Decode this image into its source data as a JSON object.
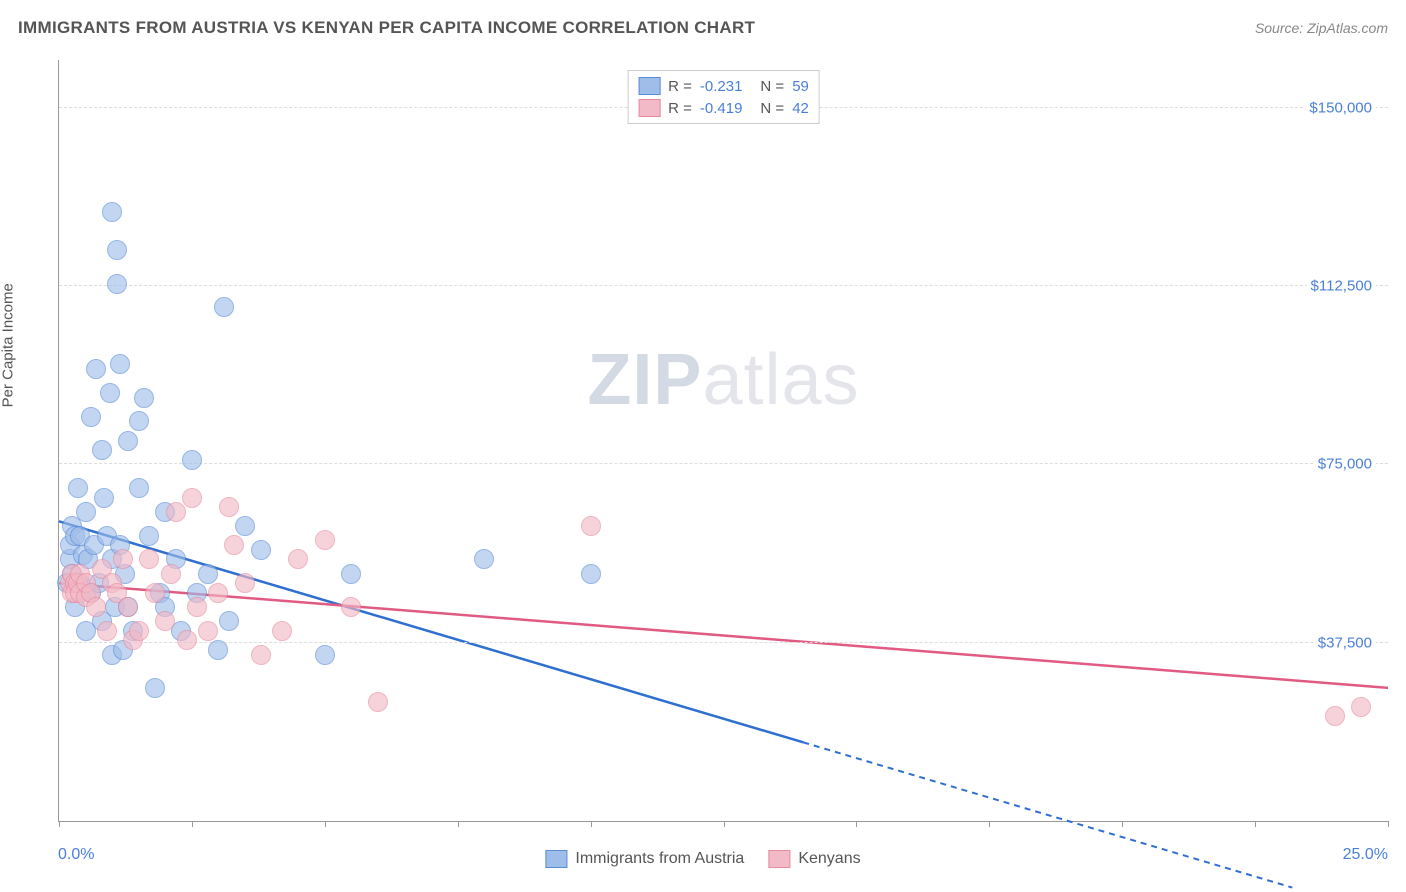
{
  "header": {
    "title": "IMMIGRANTS FROM AUSTRIA VS KENYAN PER CAPITA INCOME CORRELATION CHART",
    "source_prefix": "Source: ",
    "source_name": "ZipAtlas.com"
  },
  "watermark": {
    "zip": "ZIP",
    "atlas": "atlas"
  },
  "chart": {
    "type": "scatter",
    "ylabel": "Per Capita Income",
    "xlim": [
      0,
      25
    ],
    "ylim": [
      0,
      160000
    ],
    "xaxis_label_left": "0.0%",
    "xaxis_label_right": "25.0%",
    "xtick_positions_pct": [
      0,
      10,
      20,
      30,
      40,
      50,
      60,
      70,
      80,
      90,
      100
    ],
    "yticks": [
      {
        "v": 37500,
        "label": "$37,500"
      },
      {
        "v": 75000,
        "label": "$75,000"
      },
      {
        "v": 112500,
        "label": "$112,500"
      },
      {
        "v": 150000,
        "label": "$150,000"
      }
    ],
    "background_color": "#ffffff",
    "grid_color": "#dddddd",
    "axis_color": "#999999",
    "tick_label_color": "#4a7fd8",
    "point_radius": 10,
    "point_opacity": 0.28,
    "series": [
      {
        "key": "austria",
        "name": "Immigrants from Austria",
        "fill": "#9fbde9",
        "stroke": "#5a8bd8",
        "line_color": "#2f6fd0",
        "R": "-0.231",
        "N": "59",
        "trend": {
          "x1": 0,
          "y1": 63000,
          "xs": 14.0,
          "ys": 16500,
          "x2": 23.2,
          "y2": -14000,
          "solid_to_x": 14.0
        },
        "points": [
          [
            0.15,
            50000
          ],
          [
            0.2,
            55000
          ],
          [
            0.2,
            58000
          ],
          [
            0.25,
            52000
          ],
          [
            0.25,
            62000
          ],
          [
            0.3,
            60000
          ],
          [
            0.3,
            45000
          ],
          [
            0.35,
            70000
          ],
          [
            0.4,
            50000
          ],
          [
            0.4,
            60000
          ],
          [
            0.45,
            56000
          ],
          [
            0.5,
            40000
          ],
          [
            0.5,
            65000
          ],
          [
            0.55,
            55000
          ],
          [
            0.6,
            48000
          ],
          [
            0.6,
            85000
          ],
          [
            0.65,
            58000
          ],
          [
            0.7,
            95000
          ],
          [
            0.75,
            50000
          ],
          [
            0.8,
            78000
          ],
          [
            0.8,
            42000
          ],
          [
            0.85,
            68000
          ],
          [
            0.9,
            60000
          ],
          [
            0.95,
            90000
          ],
          [
            1.0,
            35000
          ],
          [
            1.0,
            55000
          ],
          [
            1.0,
            128000
          ],
          [
            1.05,
            45000
          ],
          [
            1.1,
            120000
          ],
          [
            1.1,
            113000
          ],
          [
            1.15,
            58000
          ],
          [
            1.15,
            96000
          ],
          [
            1.2,
            36000
          ],
          [
            1.25,
            52000
          ],
          [
            1.3,
            80000
          ],
          [
            1.3,
            45000
          ],
          [
            1.4,
            40000
          ],
          [
            1.5,
            70000
          ],
          [
            1.5,
            84000
          ],
          [
            1.6,
            89000
          ],
          [
            1.7,
            60000
          ],
          [
            1.8,
            28000
          ],
          [
            1.9,
            48000
          ],
          [
            2.0,
            65000
          ],
          [
            2.0,
            45000
          ],
          [
            2.2,
            55000
          ],
          [
            2.3,
            40000
          ],
          [
            2.5,
            76000
          ],
          [
            2.6,
            48000
          ],
          [
            2.8,
            52000
          ],
          [
            3.0,
            36000
          ],
          [
            3.1,
            108000
          ],
          [
            3.2,
            42000
          ],
          [
            3.5,
            62000
          ],
          [
            3.8,
            57000
          ],
          [
            5.0,
            35000
          ],
          [
            5.5,
            52000
          ],
          [
            8.0,
            55000
          ],
          [
            10.0,
            52000
          ]
        ]
      },
      {
        "key": "kenya",
        "name": "Kenyans",
        "fill": "#f2b9c6",
        "stroke": "#e88aa0",
        "line_color": "#e05a82",
        "R": "-0.419",
        "N": "42",
        "trend": {
          "x1": 0,
          "y1": 50000,
          "x2": 25,
          "y2": 28000,
          "solid_to_x": 25
        },
        "points": [
          [
            0.2,
            50000
          ],
          [
            0.25,
            48000
          ],
          [
            0.25,
            52000
          ],
          [
            0.3,
            50000
          ],
          [
            0.3,
            48000
          ],
          [
            0.35,
            50000
          ],
          [
            0.4,
            48000
          ],
          [
            0.4,
            52000
          ],
          [
            0.5,
            47000
          ],
          [
            0.5,
            50000
          ],
          [
            0.6,
            48000
          ],
          [
            0.7,
            45000
          ],
          [
            0.8,
            53000
          ],
          [
            0.9,
            40000
          ],
          [
            1.0,
            50000
          ],
          [
            1.1,
            48000
          ],
          [
            1.2,
            55000
          ],
          [
            1.3,
            45000
          ],
          [
            1.4,
            38000
          ],
          [
            1.5,
            40000
          ],
          [
            1.7,
            55000
          ],
          [
            1.8,
            48000
          ],
          [
            2.0,
            42000
          ],
          [
            2.1,
            52000
          ],
          [
            2.2,
            65000
          ],
          [
            2.4,
            38000
          ],
          [
            2.5,
            68000
          ],
          [
            2.6,
            45000
          ],
          [
            2.8,
            40000
          ],
          [
            3.0,
            48000
          ],
          [
            3.2,
            66000
          ],
          [
            3.3,
            58000
          ],
          [
            3.5,
            50000
          ],
          [
            3.8,
            35000
          ],
          [
            4.2,
            40000
          ],
          [
            4.5,
            55000
          ],
          [
            5.0,
            59000
          ],
          [
            5.5,
            45000
          ],
          [
            6.0,
            25000
          ],
          [
            10.0,
            62000
          ],
          [
            24.0,
            22000
          ],
          [
            24.5,
            24000
          ]
        ]
      }
    ]
  }
}
